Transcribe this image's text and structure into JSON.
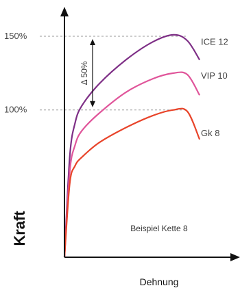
{
  "chart_data": {
    "type": "line",
    "title": "",
    "xlabel": "Dehnung",
    "ylabel": "Kraft",
    "y_tick_labels": [
      "150%",
      "100%"
    ],
    "y_tick_values": [
      150,
      100
    ],
    "ylim": [
      0,
      170
    ],
    "xlim": [
      0,
      100
    ],
    "grid": false,
    "series": [
      {
        "name": "ICE 12",
        "color": "#7e2f86",
        "x": [
          0,
          3,
          6,
          10,
          20,
          35,
          50,
          62,
          70,
          77
        ],
        "y": [
          0,
          68,
          91,
          103,
          118,
          134,
          146,
          151,
          147,
          134
        ]
      },
      {
        "name": "VIP 10",
        "color": "#e0559a",
        "x": [
          0,
          3,
          6,
          10,
          20,
          35,
          50,
          62,
          70,
          77
        ],
        "y": [
          0,
          58,
          76,
          86,
          98,
          112,
          121,
          125,
          124,
          110
        ]
      },
      {
        "name": "Gk 8",
        "color": "#e8442a",
        "x": [
          0,
          3,
          6,
          10,
          20,
          35,
          50,
          62,
          70,
          77
        ],
        "y": [
          0,
          50,
          62,
          68,
          78,
          88,
          96,
          100,
          99,
          80
        ]
      }
    ],
    "annotations": [
      {
        "text": "Δ 50%",
        "from_y": 100,
        "to_y": 150
      },
      {
        "text": "Beispiel Kette 8"
      }
    ]
  }
}
